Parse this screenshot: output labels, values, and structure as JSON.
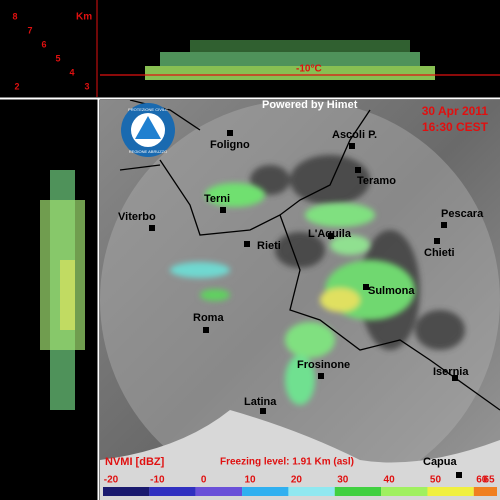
{
  "top_panel": {
    "unit": "Km",
    "heights": [
      "8",
      "7",
      "6",
      "5",
      "4",
      "3",
      "2"
    ],
    "isotherm": "-10°C"
  },
  "map": {
    "credit": "Powered by Himet",
    "date": "30 Apr 2011",
    "time": "16:30 CEST",
    "logo": {
      "top": "PROTEZIONE CIVILE",
      "bottom": "REGIONE ABRUZZO"
    },
    "cities": [
      "Foligno",
      "Ascoli P.",
      "Teramo",
      "Terni",
      "Pescara",
      "Viterbo",
      "L'Aquila",
      "Rieti",
      "Chieti",
      "Sulmona",
      "Roma",
      "Frosinone",
      "Isernia",
      "Latina",
      "Capua"
    ]
  },
  "legend": {
    "title": "NVMI [dBZ]",
    "freezing_level": "Freezing level: 1.91 Km (asl)",
    "ticks": [
      -20,
      -10,
      0,
      10,
      20,
      30,
      40,
      50,
      60,
      65
    ],
    "colors": [
      "#1a1a6e",
      "#3030c0",
      "#6a50d8",
      "#30b0f0",
      "#90e8f0",
      "#40d040",
      "#a0f060",
      "#f0f040",
      "#f08020",
      "#e02060"
    ]
  }
}
